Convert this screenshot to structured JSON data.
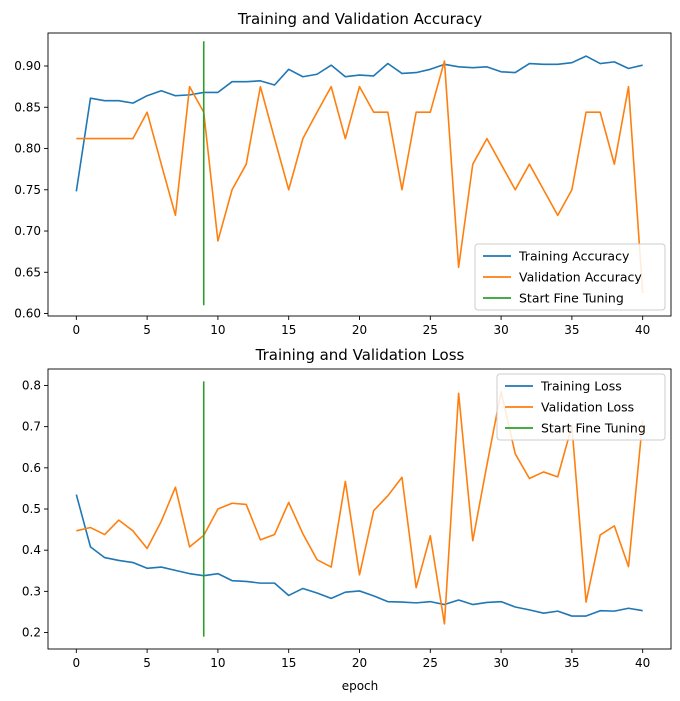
{
  "chart_data": [
    {
      "type": "line",
      "title": "Training and Validation Accuracy",
      "xlabel": "",
      "ylabel": "",
      "xlim": [
        -2,
        42
      ],
      "ylim": [
        0.597,
        0.94
      ],
      "x_ticks": [
        0,
        5,
        10,
        15,
        20,
        25,
        30,
        35,
        40
      ],
      "y_ticks": [
        0.6,
        0.65,
        0.7,
        0.75,
        0.8,
        0.85,
        0.9
      ],
      "y_tick_labels": [
        "0.60",
        "0.65",
        "0.70",
        "0.75",
        "0.80",
        "0.85",
        "0.90"
      ],
      "grid": false,
      "legend_position": "lower-right",
      "x": [
        0,
        1,
        2,
        3,
        4,
        5,
        6,
        7,
        8,
        9,
        10,
        11,
        12,
        13,
        14,
        15,
        16,
        17,
        18,
        19,
        20,
        21,
        22,
        23,
        24,
        25,
        26,
        27,
        28,
        29,
        30,
        31,
        32,
        33,
        34,
        35,
        36,
        37,
        38,
        39,
        40
      ],
      "series": [
        {
          "name": "Training Accuracy",
          "color": "#1f77b4",
          "values": [
            0.748,
            0.861,
            0.858,
            0.858,
            0.855,
            0.864,
            0.87,
            0.864,
            0.865,
            0.868,
            0.868,
            0.881,
            0.881,
            0.882,
            0.877,
            0.896,
            0.887,
            0.89,
            0.901,
            0.887,
            0.889,
            0.888,
            0.903,
            0.891,
            0.892,
            0.896,
            0.902,
            0.899,
            0.898,
            0.899,
            0.893,
            0.892,
            0.903,
            0.902,
            0.902,
            0.904,
            0.912,
            0.903,
            0.905,
            0.897,
            0.901
          ]
        },
        {
          "name": "Validation Accuracy",
          "color": "#ff7f0e",
          "values": [
            0.812,
            0.812,
            0.812,
            0.812,
            0.812,
            0.844,
            0.781,
            0.719,
            0.875,
            0.844,
            0.688,
            0.75,
            0.781,
            0.875,
            0.812,
            0.75,
            0.812,
            0.844,
            0.875,
            0.812,
            0.875,
            0.844,
            0.844,
            0.75,
            0.844,
            0.844,
            0.906,
            0.656,
            0.781,
            0.812,
            0.781,
            0.75,
            0.781,
            0.75,
            0.719,
            0.75,
            0.844,
            0.844,
            0.781,
            0.875,
            0.625
          ]
        }
      ],
      "vline": {
        "name": "Start Fine Tuning",
        "color": "#2ca02c",
        "x": 9,
        "y": [
          0.61,
          0.93
        ]
      }
    },
    {
      "type": "line",
      "title": "Training and Validation Loss",
      "xlabel": "epoch",
      "ylabel": "",
      "xlim": [
        -2,
        42
      ],
      "ylim": [
        0.16,
        0.84
      ],
      "x_ticks": [
        0,
        5,
        10,
        15,
        20,
        25,
        30,
        35,
        40
      ],
      "y_ticks": [
        0.2,
        0.3,
        0.4,
        0.5,
        0.6,
        0.7,
        0.8
      ],
      "y_tick_labels": [
        "0.2",
        "0.3",
        "0.4",
        "0.5",
        "0.6",
        "0.7",
        "0.8"
      ],
      "grid": false,
      "legend_position": "upper-right",
      "x": [
        0,
        1,
        2,
        3,
        4,
        5,
        6,
        7,
        8,
        9,
        10,
        11,
        12,
        13,
        14,
        15,
        16,
        17,
        18,
        19,
        20,
        21,
        22,
        23,
        24,
        25,
        26,
        27,
        28,
        29,
        30,
        31,
        32,
        33,
        34,
        35,
        36,
        37,
        38,
        39,
        40
      ],
      "series": [
        {
          "name": "Training Loss",
          "color": "#1f77b4",
          "values": [
            0.535,
            0.408,
            0.382,
            0.375,
            0.37,
            0.356,
            0.359,
            0.351,
            0.343,
            0.338,
            0.343,
            0.326,
            0.324,
            0.32,
            0.32,
            0.29,
            0.307,
            0.296,
            0.283,
            0.298,
            0.301,
            0.289,
            0.275,
            0.274,
            0.272,
            0.275,
            0.268,
            0.279,
            0.268,
            0.273,
            0.275,
            0.262,
            0.255,
            0.247,
            0.252,
            0.24,
            0.24,
            0.253,
            0.252,
            0.259,
            0.253
          ]
        },
        {
          "name": "Validation Loss",
          "color": "#ff7f0e",
          "values": [
            0.447,
            0.455,
            0.438,
            0.473,
            0.447,
            0.404,
            0.47,
            0.553,
            0.408,
            0.436,
            0.5,
            0.514,
            0.511,
            0.425,
            0.438,
            0.516,
            0.44,
            0.377,
            0.359,
            0.567,
            0.34,
            0.496,
            0.532,
            0.577,
            0.309,
            0.435,
            0.221,
            0.781,
            0.423,
            0.607,
            0.785,
            0.634,
            0.574,
            0.59,
            0.578,
            0.702,
            0.274,
            0.437,
            0.459,
            0.36,
            0.715
          ]
        }
      ],
      "vline": {
        "name": "Start Fine Tuning",
        "color": "#2ca02c",
        "x": 9,
        "y": [
          0.19,
          0.81
        ]
      }
    }
  ]
}
